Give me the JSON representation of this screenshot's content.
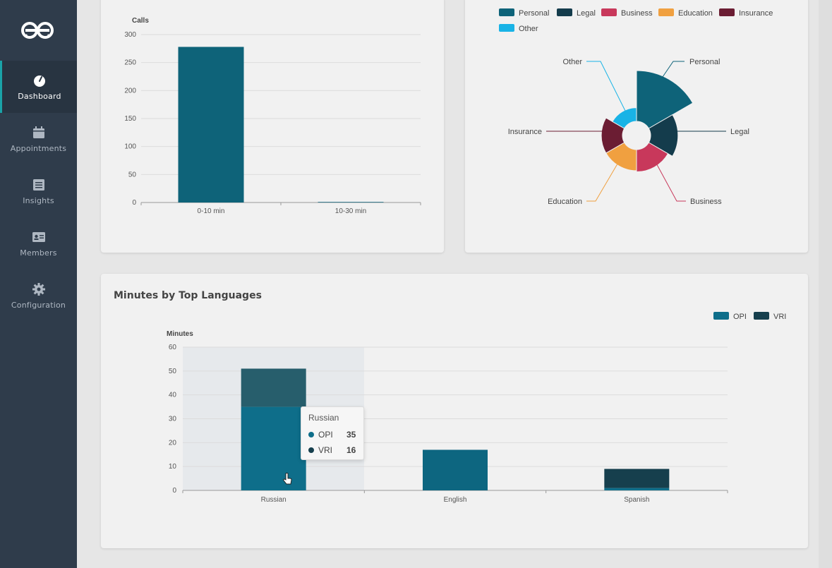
{
  "sidebar": {
    "items": [
      {
        "label": "Dashboard",
        "icon": "gauge-icon",
        "active": true
      },
      {
        "label": "Appointments",
        "icon": "calendar-icon",
        "active": false
      },
      {
        "label": "Insights",
        "icon": "list-icon",
        "active": false
      },
      {
        "label": "Members",
        "icon": "id-card-icon",
        "active": false
      },
      {
        "label": "Configuration",
        "icon": "gear-icon",
        "active": false
      }
    ]
  },
  "calls_chart": {
    "chart_data": {
      "type": "bar",
      "ylabel": "Calls",
      "categories": [
        "0-10 min",
        "10-30 min"
      ],
      "values": [
        278,
        1
      ],
      "ylim": [
        0,
        300
      ],
      "yticks": [
        "300",
        "250",
        "200",
        "150",
        "100",
        "50",
        "0"
      ],
      "grid": true,
      "color": "#0e6379"
    }
  },
  "category_chart": {
    "chart_data": {
      "type": "pie",
      "variant": "polar-area",
      "legend": [
        {
          "name": "Personal",
          "color": "#0e6379"
        },
        {
          "name": "Legal",
          "color": "#143c4c"
        },
        {
          "name": "Business",
          "color": "#c8385b"
        },
        {
          "name": "Education",
          "color": "#f0a040"
        },
        {
          "name": "Insurance",
          "color": "#6b1d33"
        },
        {
          "name": "Other",
          "color": "#19b3e6"
        }
      ],
      "labels": [
        "Personal",
        "Legal",
        "Business",
        "Education",
        "Insurance",
        "Other"
      ],
      "values": [
        89,
        48,
        39,
        37,
        37,
        24
      ],
      "legend_position": "top"
    }
  },
  "languages_chart": {
    "title": "Minutes by Top Languages",
    "chart_data": {
      "type": "bar",
      "stacked": true,
      "ylabel": "Minutes",
      "categories": [
        "Russian",
        "English",
        "Spanish"
      ],
      "series": [
        {
          "name": "OPI",
          "values": [
            35,
            17,
            1
          ],
          "color": "#0e6e8a"
        },
        {
          "name": "VRI",
          "values": [
            16,
            0,
            8
          ],
          "color": "#163f4d"
        }
      ],
      "ylim": [
        0,
        60
      ],
      "yticks": [
        "60",
        "50",
        "40",
        "30",
        "20",
        "10",
        "0"
      ],
      "legend_position": "top-right",
      "grid": true
    },
    "tooltip": {
      "title": "Russian",
      "rows": [
        {
          "name": "OPI",
          "value": "35",
          "color": "#0e6e8a"
        },
        {
          "name": "VRI",
          "value": "16",
          "color": "#163f4d"
        }
      ]
    }
  }
}
